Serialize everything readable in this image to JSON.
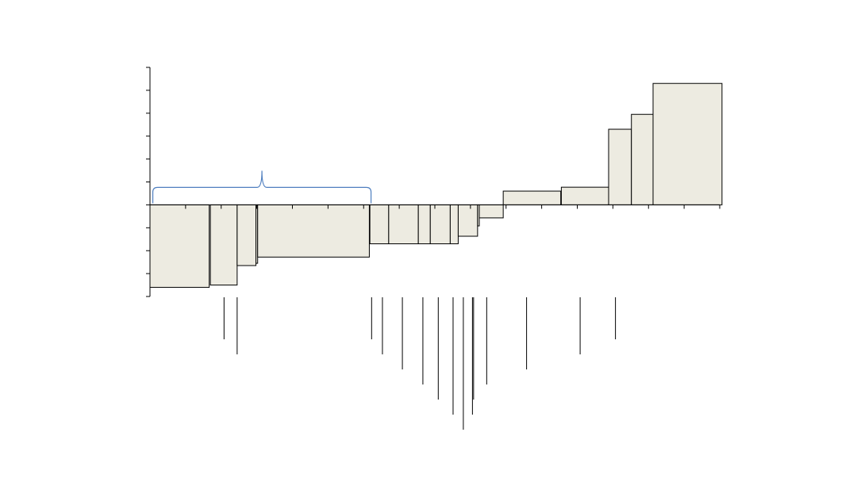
{
  "chart_data": {
    "type": "bar",
    "variant": "variable-width",
    "title": "",
    "xlabel": "",
    "ylabel": "",
    "ylim": [
      -4,
      6
    ],
    "y_ticks": [
      -4,
      -3,
      -2,
      -1,
      0,
      1,
      2,
      3,
      4,
      5,
      6
    ],
    "x_range": [
      0,
      100
    ],
    "x_ticks": [
      0,
      6.25,
      12.5,
      18.75,
      25,
      31.25,
      37.5,
      43.75,
      50,
      56.25,
      62.5,
      68.75,
      75,
      81.25,
      87.5,
      93.75,
      100
    ],
    "grid": false,
    "legend": "none",
    "fill_color": "#edebe1",
    "edge_color": "#000000",
    "brace_color": "#4f7fbf",
    "bars": [
      {
        "x_start": 0.0,
        "width": 10.4,
        "value": -3.6
      },
      {
        "x_start": 10.6,
        "width": 4.7,
        "value": -3.5
      },
      {
        "x_start": 15.3,
        "width": 3.3,
        "value": -2.65
      },
      {
        "x_start": 18.6,
        "width": 0.3,
        "value": -2.55
      },
      {
        "x_start": 18.9,
        "width": 19.6,
        "value": -2.28
      },
      {
        "x_start": 38.6,
        "width": 3.3,
        "value": -1.7
      },
      {
        "x_start": 41.9,
        "width": 5.2,
        "value": -1.7
      },
      {
        "x_start": 47.1,
        "width": 2.1,
        "value": -1.7
      },
      {
        "x_start": 49.2,
        "width": 3.5,
        "value": -1.7
      },
      {
        "x_start": 52.7,
        "width": 1.4,
        "value": -1.7
      },
      {
        "x_start": 54.1,
        "width": 3.4,
        "value": -1.37
      },
      {
        "x_start": 57.5,
        "width": 0.3,
        "value": -0.92
      },
      {
        "x_start": 57.8,
        "width": 4.2,
        "value": -0.57
      },
      {
        "x_start": 62.0,
        "width": 10.1,
        "value": 0.6
      },
      {
        "x_start": 72.2,
        "width": 8.3,
        "value": 0.77
      },
      {
        "x_start": 80.5,
        "width": 4.0,
        "value": 3.3
      },
      {
        "x_start": 84.5,
        "width": 3.8,
        "value": 3.95
      },
      {
        "x_start": 88.3,
        "width": 12.1,
        "value": 5.3
      }
    ],
    "leader_lines": [
      {
        "x": 13.0,
        "level": 2
      },
      {
        "x": 15.3,
        "level": 3
      },
      {
        "x": 38.9,
        "level": 2
      },
      {
        "x": 40.8,
        "level": 3
      },
      {
        "x": 44.3,
        "level": 4
      },
      {
        "x": 47.9,
        "level": 5
      },
      {
        "x": 50.6,
        "level": 6
      },
      {
        "x": 53.2,
        "level": 7
      },
      {
        "x": 55.0,
        "level": 8
      },
      {
        "x": 56.6,
        "level": 7
      },
      {
        "x": 56.8,
        "level": 6
      },
      {
        "x": 59.1,
        "level": 5
      },
      {
        "x": 66.1,
        "level": 4
      },
      {
        "x": 75.5,
        "level": 3
      },
      {
        "x": 81.7,
        "level": 2
      }
    ],
    "brace": {
      "x_start": 0.5,
      "x_end": 38.8
    }
  }
}
